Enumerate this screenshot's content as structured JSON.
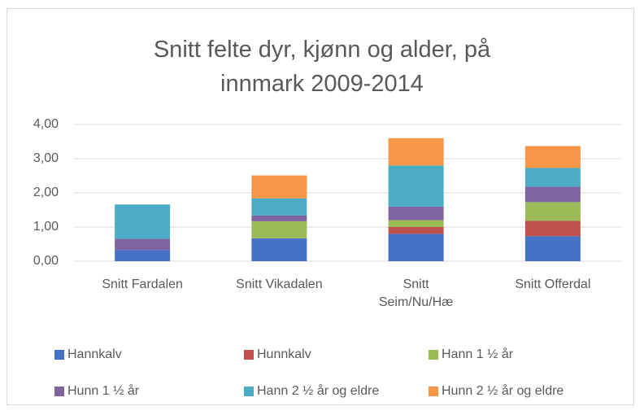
{
  "chart_data": {
    "type": "stacked_bar",
    "title": "Snitt felte dyr, kjønn og alder, på innmark 2009-2014",
    "categories": [
      "Snitt Fardalen",
      "Snitt Vikadalen",
      "Snitt Seim/Nu/Hæ",
      "Snitt Offerdal"
    ],
    "series": [
      {
        "name": "Hannkalv",
        "color": "#4472c4",
        "values": [
          0.33,
          0.67,
          0.8,
          0.73
        ]
      },
      {
        "name": "Hunnkalv",
        "color": "#c0504d",
        "values": [
          0,
          0,
          0.2,
          0.45
        ]
      },
      {
        "name": "Hann 1 ½ år",
        "color": "#9bbb59",
        "values": [
          0,
          0.5,
          0.2,
          0.55
        ]
      },
      {
        "name": "Hunn 1 ½ år",
        "color": "#8064a2",
        "values": [
          0.33,
          0.17,
          0.4,
          0.45
        ]
      },
      {
        "name": "Hann 2 ½ år og eldre",
        "color": "#4bacc6",
        "values": [
          1.0,
          0.5,
          1.2,
          0.55
        ]
      },
      {
        "name": "Hunn 2 ½ år og eldre",
        "color": "#f79646",
        "values": [
          0,
          0.67,
          0.8,
          0.64
        ]
      }
    ],
    "ylim": [
      0,
      4
    ],
    "yticks": [
      {
        "value": 0,
        "label": "0,00"
      },
      {
        "value": 1,
        "label": "1,00"
      },
      {
        "value": 2,
        "label": "2,00"
      },
      {
        "value": 3,
        "label": "3,00"
      },
      {
        "value": 4,
        "label": "4,00"
      }
    ],
    "grid": true,
    "legend": "bottom"
  }
}
